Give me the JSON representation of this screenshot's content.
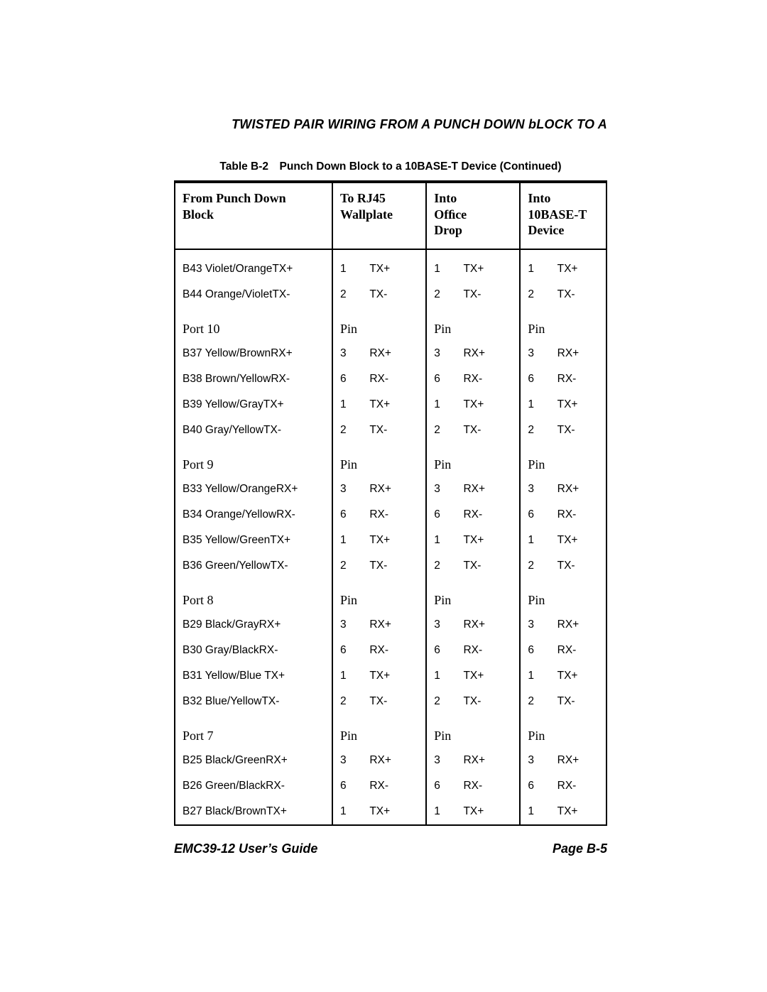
{
  "running_title": "TWISTED PAIR WIRING FROM A PUNCH DOWN bLOCK TO A",
  "caption": "Table B-2 Punch Down Block to a 10BASE-T Device (Continued)",
  "footer_left": "EMC39-12 User’s Guide",
  "footer_right": "Page B-5",
  "head": {
    "c1a": "From Punch Down",
    "c1b": "Block",
    "c2a": "To RJ45",
    "c2b": "Wallplate",
    "c3a": "Into",
    "c3b": "Ofﬁce",
    "c3c": "Drop",
    "c4a": "Into",
    "c4b": "10BASE-T",
    "c4c": "Device"
  },
  "sections": [
    {
      "port": "",
      "rows": [
        {
          "block": "B43 Violet/OrangeTX+",
          "a_pin": "1",
          "a_sig": "TX+",
          "b_pin": "1",
          "b_sig": "TX+",
          "c_pin": "1",
          "c_sig": "TX+"
        },
        {
          "block": "B44 Orange/VioletTX-",
          "a_pin": "2",
          "a_sig": "TX-",
          "b_pin": "2",
          "b_sig": "TX-",
          "c_pin": "2",
          "c_sig": "TX-"
        }
      ]
    },
    {
      "port": "Port 10",
      "rows": [
        {
          "block": "B37 Yellow/BrownRX+",
          "a_pin": "3",
          "a_sig": "RX+",
          "b_pin": "3",
          "b_sig": "RX+",
          "c_pin": "3",
          "c_sig": "RX+"
        },
        {
          "block": "B38 Brown/YellowRX-",
          "a_pin": "6",
          "a_sig": "RX-",
          "b_pin": "6",
          "b_sig": "RX-",
          "c_pin": "6",
          "c_sig": "RX-"
        },
        {
          "block": "B39 Yellow/GrayTX+",
          "a_pin": "1",
          "a_sig": "TX+",
          "b_pin": "1",
          "b_sig": "TX+",
          "c_pin": "1",
          "c_sig": "TX+"
        },
        {
          "block": "B40 Gray/YellowTX-",
          "a_pin": "2",
          "a_sig": "TX-",
          "b_pin": "2",
          "b_sig": "TX-",
          "c_pin": "2",
          "c_sig": "TX-"
        }
      ]
    },
    {
      "port": "Port 9",
      "rows": [
        {
          "block": "B33 Yellow/OrangeRX+",
          "a_pin": "3",
          "a_sig": "RX+",
          "b_pin": "3",
          "b_sig": "RX+",
          "c_pin": "3",
          "c_sig": "RX+"
        },
        {
          "block": "B34 Orange/YellowRX-",
          "a_pin": "6",
          "a_sig": "RX-",
          "b_pin": "6",
          "b_sig": "RX-",
          "c_pin": "6",
          "c_sig": "RX-"
        },
        {
          "block": "B35 Yellow/GreenTX+",
          "a_pin": "1",
          "a_sig": "TX+",
          "b_pin": "1",
          "b_sig": "TX+",
          "c_pin": "1",
          "c_sig": "TX+"
        },
        {
          "block": "B36 Green/YellowTX-",
          "a_pin": "2",
          "a_sig": "TX-",
          "b_pin": "2",
          "b_sig": "TX-",
          "c_pin": "2",
          "c_sig": "TX-"
        }
      ]
    },
    {
      "port": "Port 8",
      "rows": [
        {
          "block": "B29 Black/GrayRX+",
          "a_pin": "3",
          "a_sig": "RX+",
          "b_pin": "3",
          "b_sig": "RX+",
          "c_pin": "3",
          "c_sig": "RX+"
        },
        {
          "block": "B30 Gray/BlackRX-",
          "a_pin": "6",
          "a_sig": "RX-",
          "b_pin": "6",
          "b_sig": "RX-",
          "c_pin": "6",
          "c_sig": "RX-"
        },
        {
          "block": "B31 Yellow/Blue TX+",
          "a_pin": "1",
          "a_sig": "TX+",
          "b_pin": "1",
          "b_sig": "TX+",
          "c_pin": "1",
          "c_sig": "TX+"
        },
        {
          "block": "B32 Blue/YellowTX-",
          "a_pin": "2",
          "a_sig": "TX-",
          "b_pin": "2",
          "b_sig": "TX-",
          "c_pin": "2",
          "c_sig": "TX-"
        }
      ]
    },
    {
      "port": "Port 7",
      "rows": [
        {
          "block": "B25 Black/GreenRX+",
          "a_pin": "3",
          "a_sig": "RX+",
          "b_pin": "3",
          "b_sig": "RX+",
          "c_pin": "3",
          "c_sig": "RX+"
        },
        {
          "block": "B26 Green/BlackRX-",
          "a_pin": "6",
          "a_sig": "RX-",
          "b_pin": "6",
          "b_sig": "RX-",
          "c_pin": "6",
          "c_sig": "RX-"
        },
        {
          "block": "B27 Black/BrownTX+",
          "a_pin": "1",
          "a_sig": "TX+",
          "b_pin": "1",
          "b_sig": "TX+",
          "c_pin": "1",
          "c_sig": "TX+"
        }
      ]
    }
  ],
  "pin_label": "Pin"
}
